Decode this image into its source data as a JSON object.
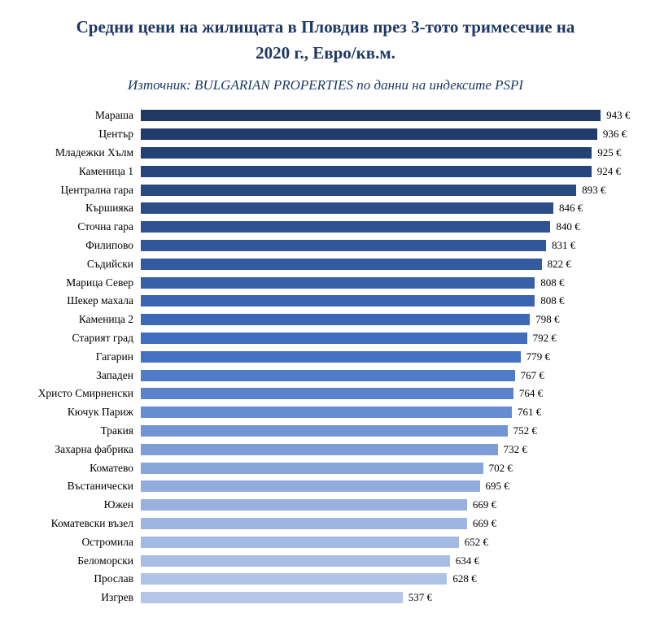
{
  "chart_data": {
    "type": "bar",
    "orientation": "horizontal",
    "title": "Средни цени на жилищата в Пловдив през 3-тото тримесечие на 2020 г., Евро/кв.м.",
    "subtitle": "Източник: BULGARIAN PROPERTIES по данни на индексите PSPI",
    "categories": [
      "Мараша",
      "Център",
      "Младежки Хълм",
      "Каменица 1",
      "Централна гара",
      "Кършияка",
      "Сточна гара",
      "Филипово",
      "Съдийски",
      "Марица Север",
      "Шекер махала",
      "Каменица 2",
      "Старият град",
      "Гагарин",
      "Западен",
      "Христо Смирненски",
      "Кючук Париж",
      "Тракия",
      "Захарна фабрика",
      "Коматево",
      "Въстанически",
      "Южен",
      "Коматевски възел",
      "Остромила",
      "Беломорски",
      "Прослав",
      "Изгрев"
    ],
    "values": [
      943,
      936,
      925,
      924,
      893,
      846,
      840,
      831,
      822,
      808,
      808,
      798,
      792,
      779,
      767,
      764,
      761,
      752,
      732,
      702,
      695,
      669,
      669,
      652,
      634,
      628,
      537
    ],
    "value_suffix": " €",
    "xlim": [
      0,
      960
    ],
    "sorted": "descending",
    "grid": false,
    "legend": false,
    "title_color": "#1F3864",
    "bar_palette": [
      "#1F3864",
      "#2F5496",
      "#4472C4",
      "#8FAADC",
      "#B4C7E7"
    ]
  }
}
